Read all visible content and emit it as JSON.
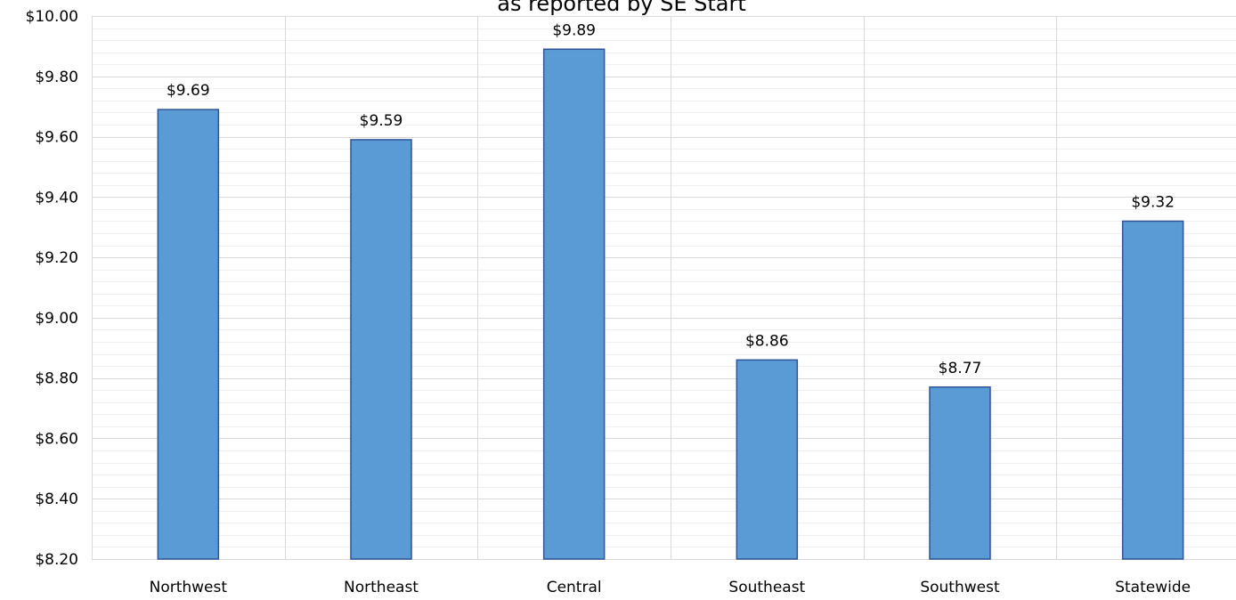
{
  "chart_data": {
    "type": "bar",
    "title": "as reported by SE Start",
    "categories": [
      "Northwest",
      "Northeast",
      "Central",
      "Southeast",
      "Southwest",
      "Statewide"
    ],
    "values": [
      9.69,
      9.59,
      9.89,
      8.86,
      8.77,
      9.32
    ],
    "data_labels": [
      "$9.69",
      "$9.59",
      "$9.89",
      "$8.86",
      "$8.77",
      "$9.32"
    ],
    "ylim": [
      8.2,
      10.0
    ],
    "yticks": [
      8.2,
      8.4,
      8.6,
      8.8,
      9.0,
      9.2,
      9.4,
      9.6,
      9.8,
      10.0
    ],
    "ytick_labels": [
      "$8.20",
      "$8.40",
      "$8.60",
      "$8.80",
      "$9.00",
      "$9.20",
      "$9.40",
      "$9.60",
      "$9.80",
      "$10.00"
    ],
    "xlabel": "",
    "ylabel": "",
    "grid": true,
    "legend": "none",
    "colors": {
      "bar_fill": "#5b9bd5",
      "bar_stroke": "#2f5597",
      "grid_major": "#d9d9d9",
      "grid_minor": "#efefef"
    }
  }
}
